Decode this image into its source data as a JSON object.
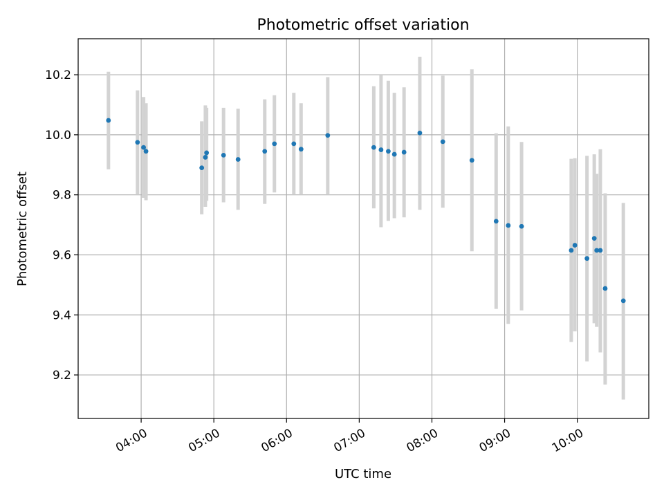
{
  "chart_data": {
    "type": "scatter",
    "title": "Photometric offset variation",
    "xlabel": "UTC time",
    "ylabel": "Photometric offset",
    "xlim": [
      "03:08",
      "10:59"
    ],
    "ylim": [
      9.055,
      10.32
    ],
    "xticks": [
      "04:00",
      "05:00",
      "06:00",
      "07:00",
      "08:00",
      "09:00",
      "10:00"
    ],
    "yticks": [
      9.2,
      9.4,
      9.6,
      9.8,
      10.0,
      10.2
    ],
    "grid": true,
    "legend": "none",
    "colors": {
      "point": "#1f77b4",
      "errorbar": "#d3d3d3"
    },
    "series": [
      {
        "points": [
          {
            "x": "03:33",
            "y": 10.048,
            "ylow": 9.885,
            "yhigh": 10.21
          },
          {
            "x": "03:57",
            "y": 9.975,
            "ylow": 9.8,
            "yhigh": 10.148
          },
          {
            "x": "04:02",
            "y": 9.958,
            "ylow": 9.79,
            "yhigh": 10.126
          },
          {
            "x": "04:04",
            "y": 9.945,
            "ylow": 9.782,
            "yhigh": 10.105
          },
          {
            "x": "04:50",
            "y": 9.89,
            "ylow": 9.735,
            "yhigh": 10.045
          },
          {
            "x": "04:53",
            "y": 9.925,
            "ylow": 9.76,
            "yhigh": 10.098
          },
          {
            "x": "04:54",
            "y": 9.94,
            "ylow": 9.78,
            "yhigh": 10.09
          },
          {
            "x": "05:08",
            "y": 9.932,
            "ylow": 9.775,
            "yhigh": 10.09
          },
          {
            "x": "05:20",
            "y": 9.918,
            "ylow": 9.75,
            "yhigh": 10.087
          },
          {
            "x": "05:42",
            "y": 9.945,
            "ylow": 9.77,
            "yhigh": 10.118
          },
          {
            "x": "05:50",
            "y": 9.97,
            "ylow": 9.808,
            "yhigh": 10.132
          },
          {
            "x": "06:06",
            "y": 9.97,
            "ylow": 9.8,
            "yhigh": 10.14
          },
          {
            "x": "06:12",
            "y": 9.952,
            "ylow": 9.8,
            "yhigh": 10.105
          },
          {
            "x": "06:34",
            "y": 9.998,
            "ylow": 9.8,
            "yhigh": 10.192
          },
          {
            "x": "07:12",
            "y": 9.958,
            "ylow": 9.755,
            "yhigh": 10.162
          },
          {
            "x": "07:18",
            "y": 9.95,
            "ylow": 9.692,
            "yhigh": 10.2
          },
          {
            "x": "07:24",
            "y": 9.945,
            "ylow": 9.713,
            "yhigh": 10.18
          },
          {
            "x": "07:29",
            "y": 9.935,
            "ylow": 9.722,
            "yhigh": 10.14
          },
          {
            "x": "07:37",
            "y": 9.942,
            "ylow": 9.725,
            "yhigh": 10.158
          },
          {
            "x": "07:50",
            "y": 10.006,
            "ylow": 9.75,
            "yhigh": 10.26
          },
          {
            "x": "08:09",
            "y": 9.977,
            "ylow": 9.757,
            "yhigh": 10.197
          },
          {
            "x": "08:33",
            "y": 9.915,
            "ylow": 9.612,
            "yhigh": 10.218
          },
          {
            "x": "08:53",
            "y": 9.712,
            "ylow": 9.42,
            "yhigh": 10.005
          },
          {
            "x": "09:03",
            "y": 9.698,
            "ylow": 9.37,
            "yhigh": 10.028
          },
          {
            "x": "09:14",
            "y": 9.695,
            "ylow": 9.415,
            "yhigh": 9.976
          },
          {
            "x": "09:55",
            "y": 9.615,
            "ylow": 9.31,
            "yhigh": 9.92
          },
          {
            "x": "09:58",
            "y": 9.632,
            "ylow": 9.345,
            "yhigh": 9.922
          },
          {
            "x": "10:08",
            "y": 9.588,
            "ylow": 9.245,
            "yhigh": 9.93
          },
          {
            "x": "10:14",
            "y": 9.655,
            "ylow": 9.372,
            "yhigh": 9.935
          },
          {
            "x": "10:16",
            "y": 9.615,
            "ylow": 9.36,
            "yhigh": 9.87
          },
          {
            "x": "10:19",
            "y": 9.615,
            "ylow": 9.275,
            "yhigh": 9.952
          },
          {
            "x": "10:23",
            "y": 9.488,
            "ylow": 9.168,
            "yhigh": 9.805
          },
          {
            "x": "10:38",
            "y": 9.447,
            "ylow": 9.118,
            "yhigh": 9.773
          }
        ]
      }
    ]
  }
}
